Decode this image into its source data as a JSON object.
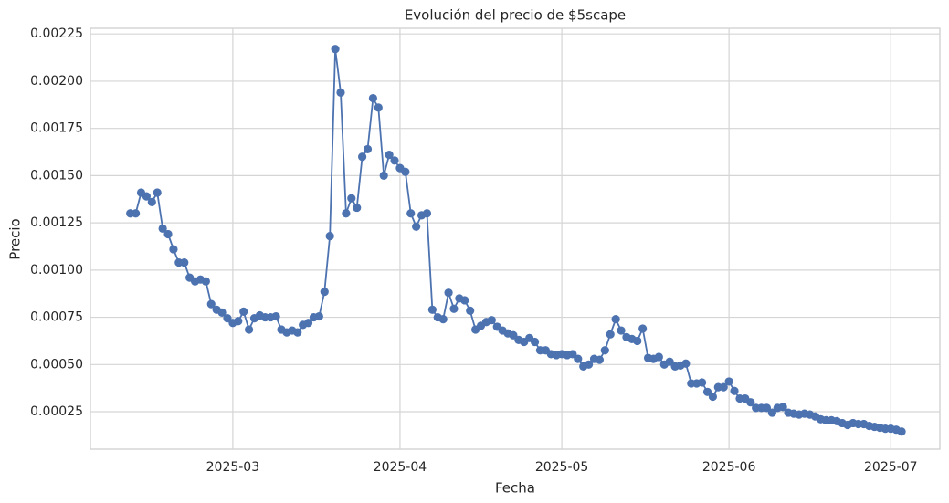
{
  "chart_data": {
    "type": "line",
    "title": "Evolución del precio de $5scape",
    "x_label": "Fecha",
    "y_label": "Precio",
    "series": [
      {
        "name": "Precio",
        "color": "#4c72b0",
        "values": [
          0.0013,
          0.0013,
          0.00141,
          0.00139,
          0.00136,
          0.00141,
          0.00122,
          0.00119,
          0.00111,
          0.00104,
          0.00104,
          0.00096,
          0.00094,
          0.00095,
          0.00094,
          0.00082,
          0.00079,
          0.000775,
          0.000745,
          0.00072,
          0.00073,
          0.00078,
          0.000685,
          0.000745,
          0.00076,
          0.00075,
          0.00075,
          0.000755,
          0.000685,
          0.00067,
          0.00068,
          0.00067,
          0.00071,
          0.00072,
          0.00075,
          0.000755,
          0.000885,
          0.00118,
          0.00217,
          0.00194,
          0.0013,
          0.00138,
          0.00133,
          0.0016,
          0.00164,
          0.00191,
          0.00186,
          0.0015,
          0.00161,
          0.00158,
          0.00154,
          0.00152,
          0.0013,
          0.00123,
          0.00129,
          0.0013,
          0.00079,
          0.00075,
          0.00074,
          0.00088,
          0.000795,
          0.00085,
          0.00084,
          0.000785,
          0.000685,
          0.000705,
          0.000725,
          0.000735,
          0.0007,
          0.00068,
          0.000665,
          0.000655,
          0.00063,
          0.00062,
          0.00064,
          0.00062,
          0.000575,
          0.000575,
          0.000555,
          0.00055,
          0.000555,
          0.00055,
          0.000555,
          0.00053,
          0.00049,
          0.0005,
          0.00053,
          0.000525,
          0.000575,
          0.00066,
          0.00074,
          0.00068,
          0.000645,
          0.000635,
          0.000625,
          0.00069,
          0.000535,
          0.00053,
          0.00054,
          0.0005,
          0.000515,
          0.00049,
          0.000495,
          0.000505,
          0.0004,
          0.0004,
          0.000405,
          0.000355,
          0.00033,
          0.00038,
          0.00038,
          0.00041,
          0.00036,
          0.00032,
          0.00032,
          0.0003,
          0.00027,
          0.00027,
          0.00027,
          0.000245,
          0.00027,
          0.000275,
          0.000245,
          0.00024,
          0.000235,
          0.00024,
          0.000235,
          0.000225,
          0.00021,
          0.000205,
          0.000205,
          0.0002,
          0.00019,
          0.00018,
          0.00019,
          0.000185,
          0.000185,
          0.000175,
          0.00017,
          0.000165,
          0.00016,
          0.00016,
          0.000155,
          0.000145
        ]
      }
    ],
    "xlim": [
      -7.4,
      150.1
    ],
    "xticks": [
      {
        "value": 19,
        "label": "2025-03"
      },
      {
        "value": 50,
        "label": "2025-04"
      },
      {
        "value": 80,
        "label": "2025-05"
      },
      {
        "value": 111,
        "label": "2025-06"
      },
      {
        "value": 141,
        "label": "2025-07"
      }
    ],
    "ylim": [
      5.2e-05,
      0.00228
    ],
    "yticks": [
      0.00025,
      {
        "value": 0.0005,
        "label": "0.00050"
      },
      0.00075,
      {
        "value": 0.001,
        "label": "0.00100"
      },
      0.00125,
      {
        "value": 0.0015,
        "label": "0.00150"
      },
      0.00175,
      {
        "value": 0.002,
        "label": "0.00200"
      },
      0.00225
    ],
    "grid": true
  }
}
